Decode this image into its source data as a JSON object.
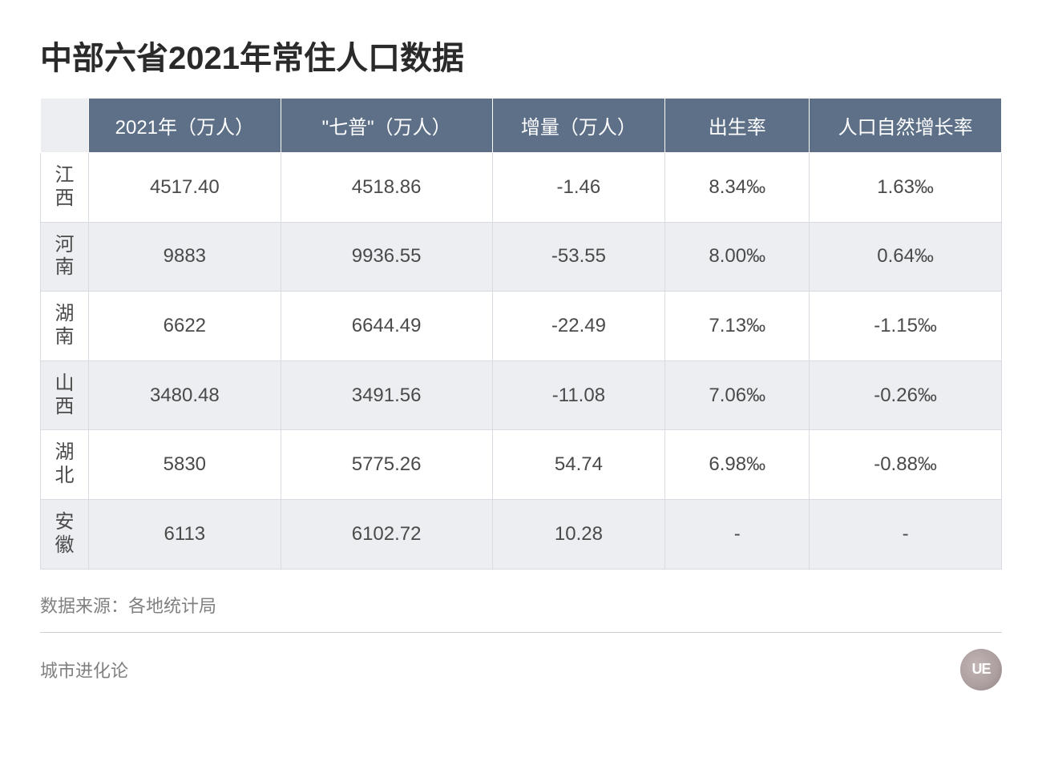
{
  "title": "中部六省2021年常住人口数据",
  "table": {
    "type": "table",
    "header_bg": "#5e7088",
    "header_fg": "#ffffff",
    "row_odd_bg": "#ffffff",
    "row_even_bg": "#eceef2",
    "border_color": "#d8dce2",
    "text_color": "#4a4a4a",
    "title_fontsize": 40,
    "cell_fontsize": 24,
    "columns": [
      "",
      "2021年（万人）",
      "\"七普\"（万人）",
      "增量（万人）",
      "出生率",
      "人口自然增长率"
    ],
    "col_widths_pct": [
      5,
      20,
      22,
      18,
      15,
      20
    ],
    "rows": [
      {
        "province": "江西",
        "pop2021": "4517.40",
        "census7": "4518.86",
        "delta": "-1.46",
        "birth": "8.34‰",
        "natural": "1.63‰"
      },
      {
        "province": "河南",
        "pop2021": "9883",
        "census7": "9936.55",
        "delta": "-53.55",
        "birth": "8.00‰",
        "natural": "0.64‰"
      },
      {
        "province": "湖南",
        "pop2021": "6622",
        "census7": "6644.49",
        "delta": "-22.49",
        "birth": "7.13‰",
        "natural": "-1.15‰"
      },
      {
        "province": "山西",
        "pop2021": "3480.48",
        "census7": "3491.56",
        "delta": "-11.08",
        "birth": "7.06‰",
        "natural": "-0.26‰"
      },
      {
        "province": "湖北",
        "pop2021": "5830",
        "census7": "5775.26",
        "delta": "54.74",
        "birth": "6.98‰",
        "natural": "-0.88‰"
      },
      {
        "province": "安徽",
        "pop2021": "6113",
        "census7": "6102.72",
        "delta": "10.28",
        "birth": "-",
        "natural": "-"
      }
    ]
  },
  "source_label": "数据来源：各地统计局",
  "footer_text": "城市进化论",
  "logo_text": "UE",
  "colors": {
    "background": "#ffffff",
    "title": "#2a2a2a",
    "muted": "#808080",
    "divider": "#cfcfcf"
  }
}
